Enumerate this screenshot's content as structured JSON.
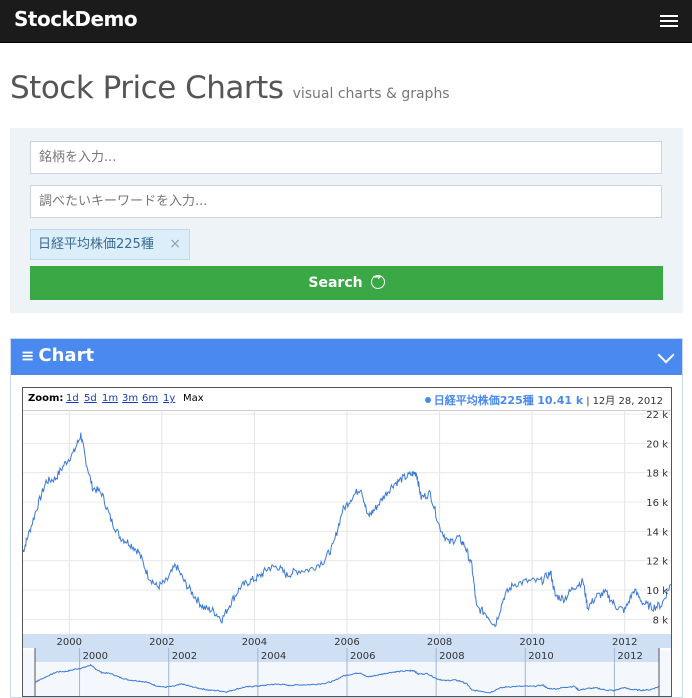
{
  "navbar": {
    "brand": "StockDemo"
  },
  "page": {
    "title": "Stock Price Charts",
    "subtitle": "visual charts & graphs"
  },
  "search": {
    "symbol_placeholder": "銘柄を入力...",
    "keyword_placeholder": "調べたいキーワードを入力...",
    "tag_label": "日経平均株価225種",
    "tag_remove": "×",
    "button_label": "Search"
  },
  "chart_panel": {
    "menu_glyph": "≡",
    "title": "Chart",
    "zoom_label": "Zoom:",
    "zoom_options": [
      "1d",
      "5d",
      "1m",
      "3m",
      "6m",
      "1y",
      "Max"
    ],
    "legend_series": "日経平均株価225種",
    "legend_value": "10.41 k",
    "legend_date": "12月 28, 2012"
  },
  "colors": {
    "line": "#3d7ad6",
    "accent": "#4a89f0",
    "button": "#3aa845"
  },
  "chart_data": {
    "type": "line",
    "series": [
      {
        "name": "日経平均株価225種",
        "points": [
          [
            1999.0,
            12.6
          ],
          [
            1999.1,
            13.6
          ],
          [
            1999.3,
            15.6
          ],
          [
            1999.5,
            17.4
          ],
          [
            1999.7,
            17.6
          ],
          [
            1999.9,
            18.6
          ],
          [
            2000.1,
            19.4
          ],
          [
            2000.25,
            20.6
          ],
          [
            2000.35,
            18.9
          ],
          [
            2000.5,
            17.0
          ],
          [
            2000.7,
            16.6
          ],
          [
            2000.9,
            14.8
          ],
          [
            2001.1,
            13.6
          ],
          [
            2001.3,
            13.2
          ],
          [
            2001.5,
            12.6
          ],
          [
            2001.7,
            11.0
          ],
          [
            2001.9,
            10.2
          ],
          [
            2002.1,
            10.6
          ],
          [
            2002.3,
            11.7
          ],
          [
            2002.5,
            10.5
          ],
          [
            2002.7,
            9.6
          ],
          [
            2002.9,
            8.8
          ],
          [
            2003.1,
            8.6
          ],
          [
            2003.3,
            8.0
          ],
          [
            2003.5,
            9.2
          ],
          [
            2003.7,
            10.2
          ],
          [
            2003.9,
            10.6
          ],
          [
            2004.1,
            10.9
          ],
          [
            2004.3,
            11.5
          ],
          [
            2004.5,
            11.6
          ],
          [
            2004.7,
            11.0
          ],
          [
            2004.9,
            11.3
          ],
          [
            2005.2,
            11.4
          ],
          [
            2005.5,
            12.0
          ],
          [
            2005.7,
            13.0
          ],
          [
            2005.9,
            15.4
          ],
          [
            2006.1,
            16.3
          ],
          [
            2006.3,
            17.0
          ],
          [
            2006.45,
            15.0
          ],
          [
            2006.6,
            15.5
          ],
          [
            2006.8,
            16.4
          ],
          [
            2007.0,
            17.2
          ],
          [
            2007.2,
            17.6
          ],
          [
            2007.4,
            17.9
          ],
          [
            2007.5,
            18.0
          ],
          [
            2007.6,
            16.3
          ],
          [
            2007.8,
            16.6
          ],
          [
            2008.0,
            14.3
          ],
          [
            2008.2,
            13.2
          ],
          [
            2008.4,
            13.6
          ],
          [
            2008.55,
            13.0
          ],
          [
            2008.7,
            11.6
          ],
          [
            2008.8,
            8.8
          ],
          [
            2009.0,
            8.4
          ],
          [
            2009.2,
            7.6
          ],
          [
            2009.4,
            9.6
          ],
          [
            2009.6,
            10.4
          ],
          [
            2009.9,
            10.6
          ],
          [
            2010.2,
            10.6
          ],
          [
            2010.4,
            11.2
          ],
          [
            2010.5,
            9.6
          ],
          [
            2010.7,
            9.4
          ],
          [
            2010.9,
            10.2
          ],
          [
            2011.1,
            10.6
          ],
          [
            2011.2,
            8.8
          ],
          [
            2011.4,
            9.6
          ],
          [
            2011.6,
            9.8
          ],
          [
            2011.8,
            8.9
          ],
          [
            2012.0,
            8.6
          ],
          [
            2012.2,
            10.0
          ],
          [
            2012.4,
            9.1
          ],
          [
            2012.6,
            8.8
          ],
          [
            2012.8,
            9.0
          ],
          [
            2012.99,
            10.41
          ]
        ]
      }
    ],
    "xlim": [
      1999,
      2013
    ],
    "ylim": [
      7,
      22
    ],
    "x_ticks": [
      "2000",
      "2002",
      "2004",
      "2006",
      "2008",
      "2010",
      "2012"
    ],
    "y_ticks": [
      "8 k",
      "10 k",
      "12 k",
      "14 k",
      "16 k",
      "18 k",
      "20 k",
      "22 k"
    ],
    "navigator_ticks": [
      "2000",
      "2002",
      "2004",
      "2006",
      "2008",
      "2010",
      "2012"
    ],
    "grid": true
  }
}
